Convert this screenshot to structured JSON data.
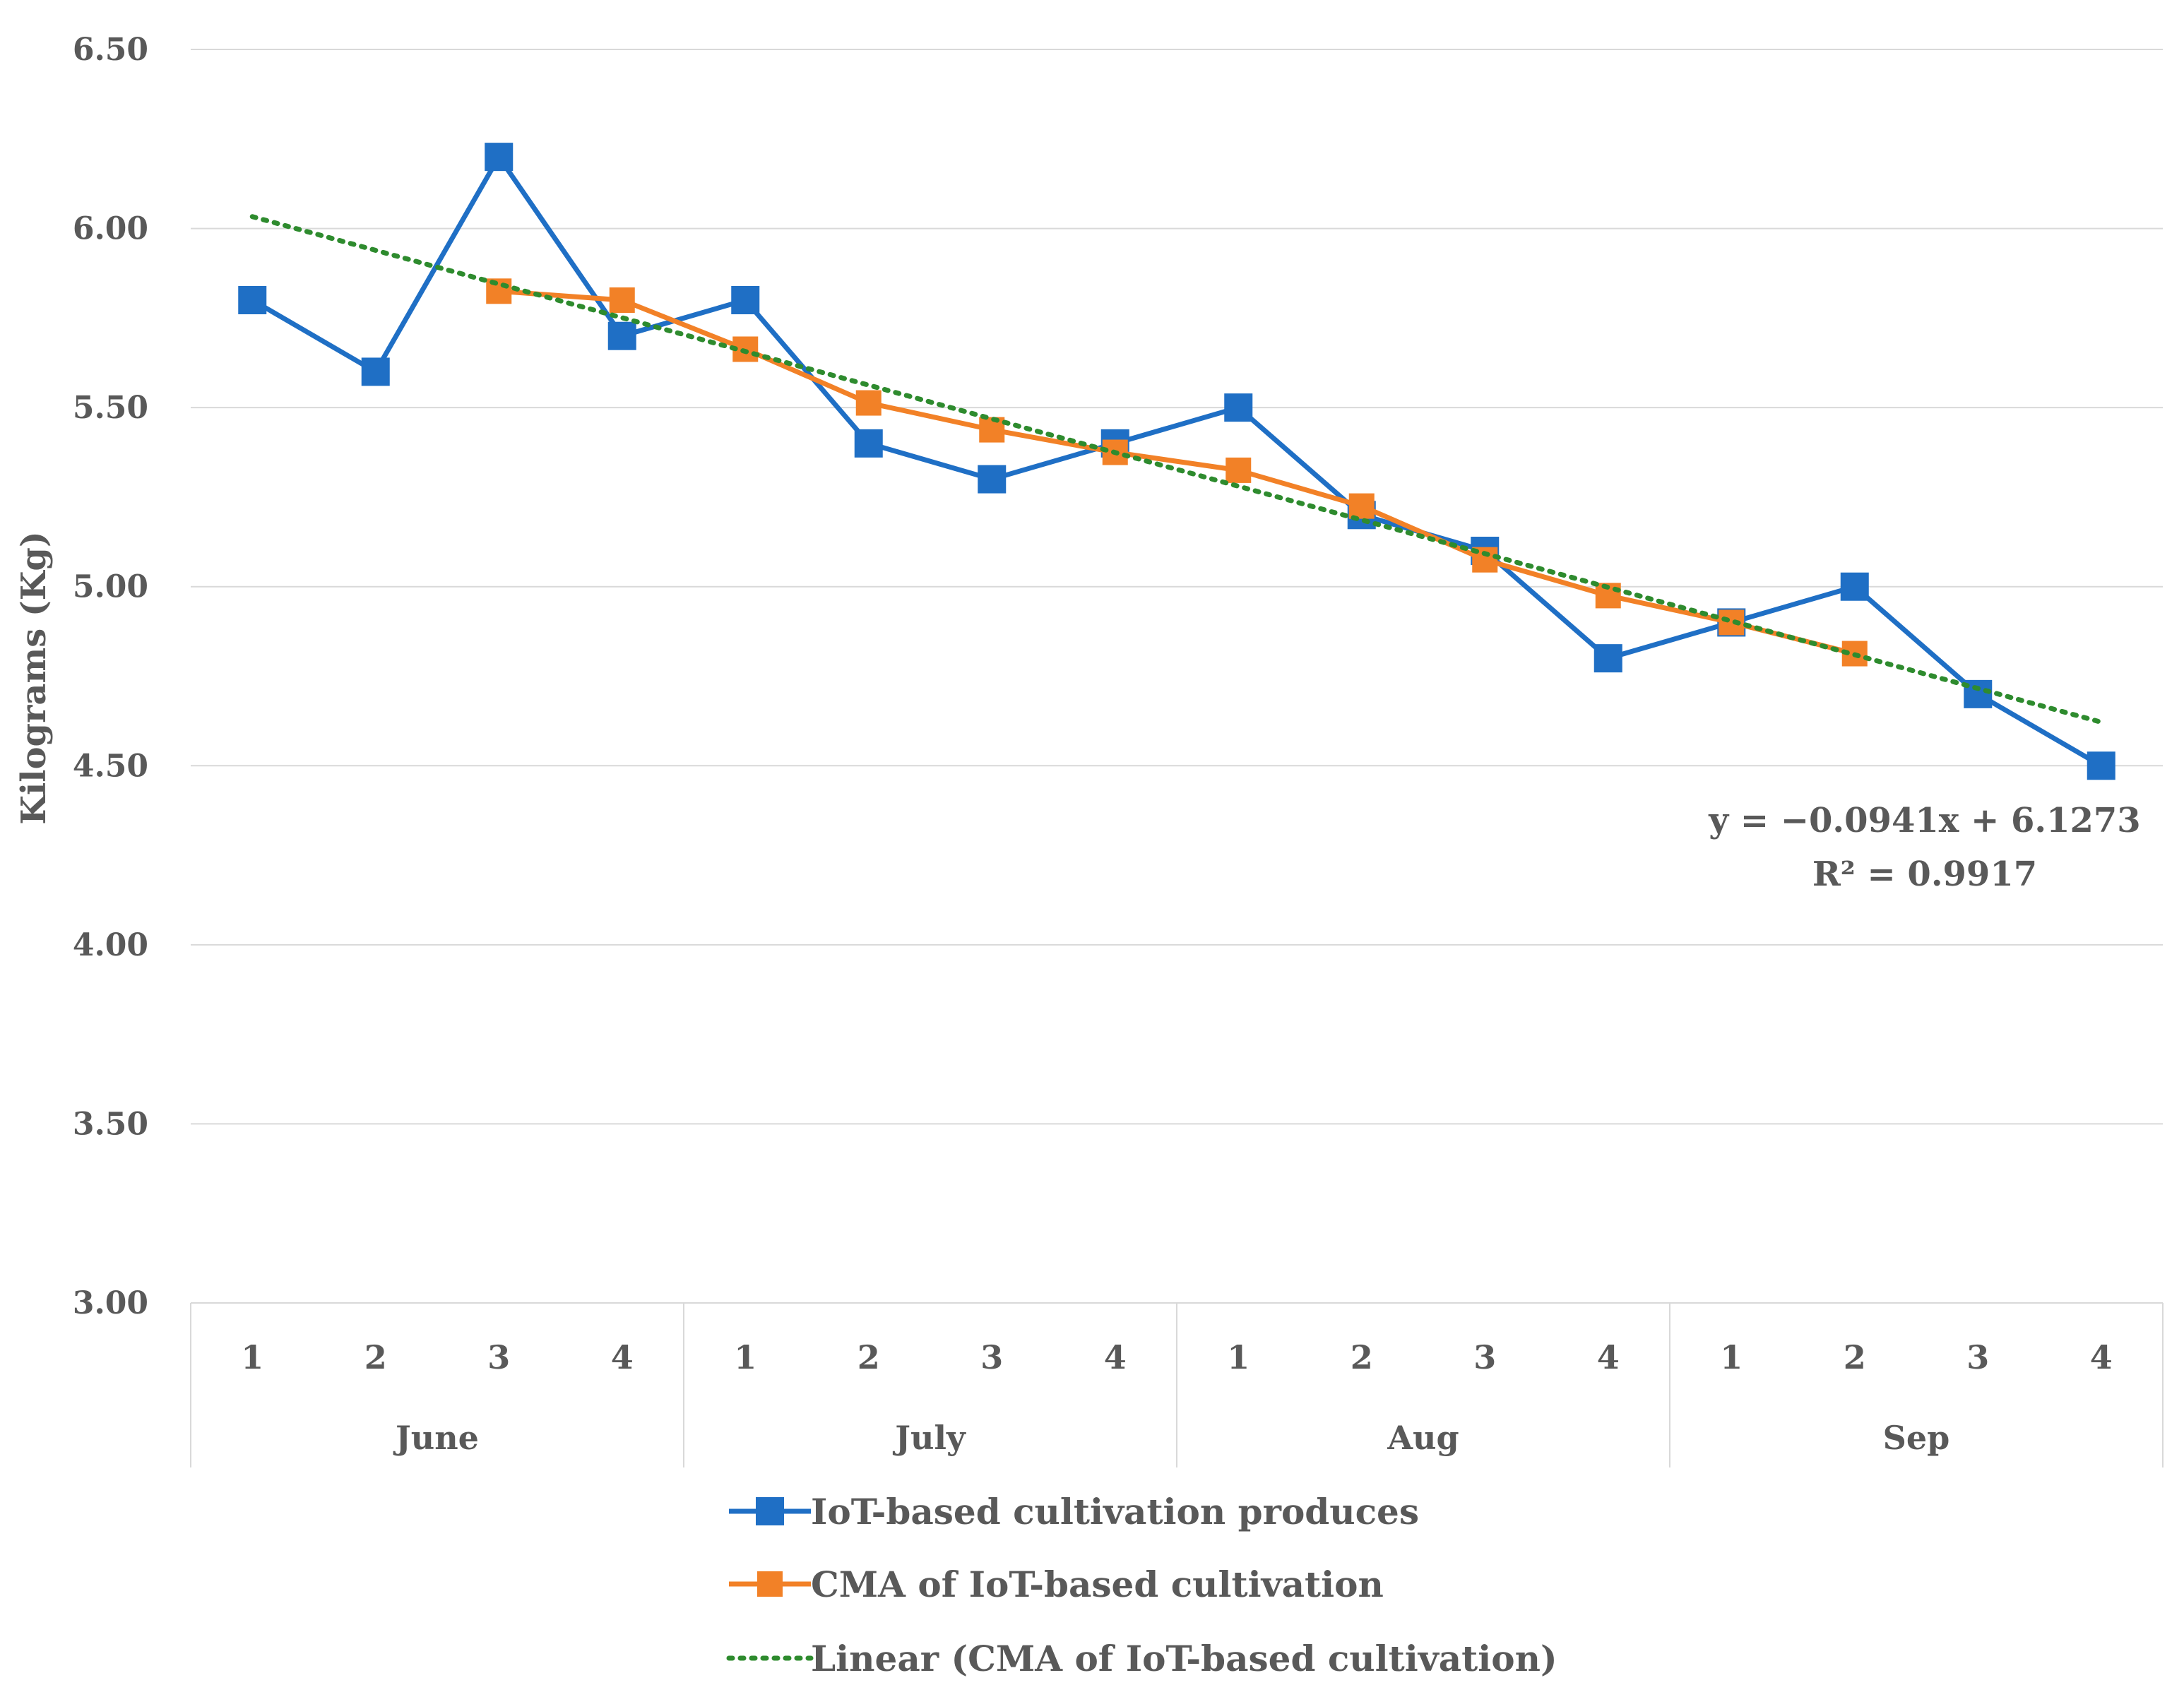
{
  "chart_data": {
    "type": "line",
    "ylabel": "Kilograms (Kg)",
    "xlabel": "",
    "ylim": [
      3.0,
      6.5
    ],
    "yticks": [
      3.0,
      3.5,
      4.0,
      4.5,
      5.0,
      5.5,
      6.0,
      6.5
    ],
    "ytick_labels": [
      "3.00",
      "3.50",
      "4.00",
      "4.50",
      "5.00",
      "5.50",
      "6.00",
      "6.50"
    ],
    "x": [
      1,
      2,
      3,
      4,
      5,
      6,
      7,
      8,
      9,
      10,
      11,
      12,
      13,
      14,
      15,
      16
    ],
    "week_labels": [
      "1",
      "2",
      "3",
      "4",
      "1",
      "2",
      "3",
      "4",
      "1",
      "2",
      "3",
      "4",
      "1",
      "2",
      "3",
      "4"
    ],
    "month_groups": [
      {
        "label": "June",
        "start": 1,
        "end": 4
      },
      {
        "label": "July",
        "start": 5,
        "end": 8
      },
      {
        "label": "Aug",
        "start": 9,
        "end": 12
      },
      {
        "label": "Sep",
        "start": 13,
        "end": 16
      }
    ],
    "series": [
      {
        "name": "IoT-based cultivation produces",
        "color": "#1f6fc5",
        "style": "solid",
        "marker": "square",
        "values": [
          5.8,
          5.6,
          6.2,
          5.7,
          5.8,
          5.4,
          5.3,
          5.4,
          5.5,
          5.2,
          5.1,
          4.8,
          4.9,
          5.0,
          4.7,
          4.5
        ]
      },
      {
        "name": "CMA of IoT-based cultivation",
        "color": "#f28127",
        "style": "solid",
        "marker": "square",
        "values": [
          null,
          null,
          5.825,
          5.8,
          5.663,
          5.513,
          5.438,
          5.375,
          5.325,
          5.225,
          5.075,
          4.975,
          4.9,
          4.813,
          null,
          null
        ]
      },
      {
        "name": "Linear (CMA of IoT-based cultivation)",
        "color": "#2e8b2e",
        "style": "dotted",
        "marker": "none",
        "slope": -0.0941,
        "intercept": 6.1273,
        "x_start": 1,
        "x_end": 16
      }
    ],
    "trendline_equation": "y = −0.0941x + 6.1273",
    "trendline_r2": "R² = 0.9917",
    "legend_position": "bottom"
  }
}
